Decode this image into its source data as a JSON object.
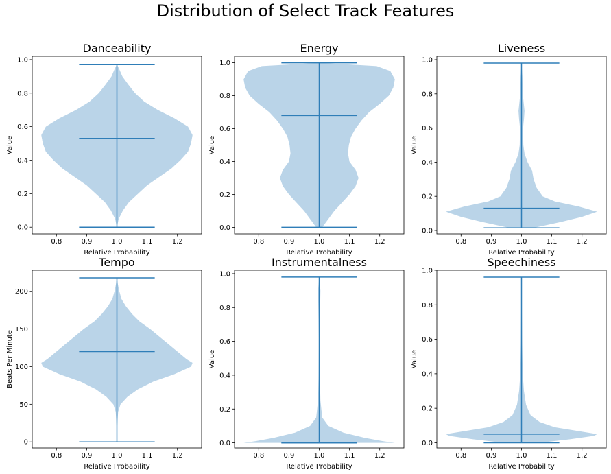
{
  "figure": {
    "title": "Distribution of Select Track Features"
  },
  "colors": {
    "body": "#BAD4E8",
    "line": "#2F7EB8"
  },
  "chart_data": [
    {
      "type": "violin",
      "title": "Danceability",
      "xlabel": "Relative Probability",
      "ylabel": "Value",
      "xlim": [
        0.72,
        1.28
      ],
      "ylim": [
        -0.04,
        1.02
      ],
      "xticks": [
        "0.8",
        "0.9",
        "1.0",
        "1.1",
        "1.2"
      ],
      "yticks": [
        "0.0",
        "0.2",
        "0.4",
        "0.6",
        "0.8",
        "1.0"
      ],
      "ytick_values": [
        0.0,
        0.2,
        0.4,
        0.6,
        0.8,
        1.0
      ],
      "min": 0.0,
      "median": 0.53,
      "max": 0.97,
      "density": [
        [
          0.0,
          0.0
        ],
        [
          0.05,
          0.006
        ],
        [
          0.1,
          0.02
        ],
        [
          0.15,
          0.04
        ],
        [
          0.2,
          0.07
        ],
        [
          0.25,
          0.1
        ],
        [
          0.3,
          0.14
        ],
        [
          0.35,
          0.18
        ],
        [
          0.4,
          0.21
        ],
        [
          0.45,
          0.235
        ],
        [
          0.5,
          0.245
        ],
        [
          0.55,
          0.25
        ],
        [
          0.6,
          0.235
        ],
        [
          0.65,
          0.19
        ],
        [
          0.7,
          0.135
        ],
        [
          0.75,
          0.09
        ],
        [
          0.8,
          0.06
        ],
        [
          0.85,
          0.038
        ],
        [
          0.9,
          0.018
        ],
        [
          0.95,
          0.006
        ],
        [
          0.97,
          0.0
        ]
      ]
    },
    {
      "type": "violin",
      "title": "Energy",
      "xlabel": "Relative Probability",
      "ylabel": "Value",
      "xlim": [
        0.72,
        1.28
      ],
      "ylim": [
        -0.04,
        1.04
      ],
      "xticks": [
        "0.8",
        "0.9",
        "1.0",
        "1.1",
        "1.2"
      ],
      "yticks": [
        "0.0",
        "0.2",
        "0.4",
        "0.6",
        "0.8",
        "1.0"
      ],
      "ytick_values": [
        0.0,
        0.2,
        0.4,
        0.6,
        0.8,
        1.0
      ],
      "min": 0.0,
      "median": 0.68,
      "max": 1.0,
      "density": [
        [
          0.0,
          0.01
        ],
        [
          0.05,
          0.03
        ],
        [
          0.1,
          0.05
        ],
        [
          0.15,
          0.075
        ],
        [
          0.2,
          0.1
        ],
        [
          0.25,
          0.12
        ],
        [
          0.3,
          0.13
        ],
        [
          0.35,
          0.12
        ],
        [
          0.4,
          0.1
        ],
        [
          0.45,
          0.095
        ],
        [
          0.5,
          0.098
        ],
        [
          0.55,
          0.105
        ],
        [
          0.6,
          0.12
        ],
        [
          0.65,
          0.14
        ],
        [
          0.7,
          0.165
        ],
        [
          0.75,
          0.2
        ],
        [
          0.8,
          0.23
        ],
        [
          0.85,
          0.245
        ],
        [
          0.9,
          0.25
        ],
        [
          0.95,
          0.235
        ],
        [
          0.98,
          0.19
        ],
        [
          1.0,
          0.0
        ]
      ]
    },
    {
      "type": "violin",
      "title": "Liveness",
      "xlabel": "Relative Probability",
      "ylabel": "Value",
      "xlim": [
        0.72,
        1.28
      ],
      "ylim": [
        -0.02,
        1.02
      ],
      "xticks": [
        "0.8",
        "0.9",
        "1.0",
        "1.1",
        "1.2"
      ],
      "yticks": [
        "0.0",
        "0.2",
        "0.4",
        "0.6",
        "0.8",
        "1.0"
      ],
      "ytick_values": [
        0.0,
        0.2,
        0.4,
        0.6,
        0.8,
        1.0
      ],
      "min": 0.015,
      "median": 0.13,
      "max": 0.98,
      "density": [
        [
          0.015,
          0.04
        ],
        [
          0.05,
          0.13
        ],
        [
          0.08,
          0.2
        ],
        [
          0.11,
          0.25
        ],
        [
          0.14,
          0.19
        ],
        [
          0.17,
          0.11
        ],
        [
          0.2,
          0.07
        ],
        [
          0.25,
          0.05
        ],
        [
          0.3,
          0.04
        ],
        [
          0.35,
          0.035
        ],
        [
          0.4,
          0.02
        ],
        [
          0.45,
          0.01
        ],
        [
          0.5,
          0.006
        ],
        [
          0.6,
          0.005
        ],
        [
          0.65,
          0.008
        ],
        [
          0.7,
          0.01
        ],
        [
          0.75,
          0.007
        ],
        [
          0.8,
          0.004
        ],
        [
          0.9,
          0.003
        ],
        [
          0.98,
          0.0
        ]
      ]
    },
    {
      "type": "violin",
      "title": "Tempo",
      "xlabel": "Relative Probability",
      "ylabel": "Beats Per Minute",
      "xlim": [
        0.72,
        1.28
      ],
      "ylim": [
        -8,
        228
      ],
      "xticks": [
        "0.8",
        "0.9",
        "1.0",
        "1.1",
        "1.2"
      ],
      "yticks": [
        "0",
        "50",
        "100",
        "150",
        "200"
      ],
      "ytick_values": [
        0,
        50,
        100,
        150,
        200
      ],
      "min": 0,
      "median": 120,
      "max": 218,
      "density": [
        [
          0,
          0.0
        ],
        [
          20,
          0.001
        ],
        [
          40,
          0.004
        ],
        [
          50,
          0.012
        ],
        [
          60,
          0.035
        ],
        [
          70,
          0.07
        ],
        [
          80,
          0.12
        ],
        [
          90,
          0.19
        ],
        [
          100,
          0.245
        ],
        [
          105,
          0.25
        ],
        [
          110,
          0.23
        ],
        [
          120,
          0.2
        ],
        [
          130,
          0.17
        ],
        [
          140,
          0.14
        ],
        [
          150,
          0.11
        ],
        [
          160,
          0.075
        ],
        [
          170,
          0.05
        ],
        [
          180,
          0.03
        ],
        [
          190,
          0.015
        ],
        [
          200,
          0.008
        ],
        [
          210,
          0.003
        ],
        [
          218,
          0.0
        ]
      ]
    },
    {
      "type": "violin",
      "title": "Instrumentalness",
      "xlabel": "Relative Probability",
      "ylabel": "Value",
      "xlim": [
        0.72,
        1.28
      ],
      "ylim": [
        -0.03,
        1.02
      ],
      "xticks": [
        "0.8",
        "0.9",
        "1.0",
        "1.1",
        "1.2"
      ],
      "yticks": [
        "0.0",
        "0.2",
        "0.4",
        "0.6",
        "0.8",
        "1.0"
      ],
      "ytick_values": [
        0.0,
        0.2,
        0.4,
        0.6,
        0.8,
        1.0
      ],
      "min": 0.0,
      "median": 0.0,
      "max": 0.98,
      "density": [
        [
          0.0,
          0.25
        ],
        [
          0.01,
          0.21
        ],
        [
          0.03,
          0.15
        ],
        [
          0.06,
          0.08
        ],
        [
          0.1,
          0.03
        ],
        [
          0.15,
          0.01
        ],
        [
          0.25,
          0.004
        ],
        [
          0.4,
          0.002
        ],
        [
          0.6,
          0.001
        ],
        [
          0.8,
          0.003
        ],
        [
          0.9,
          0.004
        ],
        [
          0.98,
          0.0
        ]
      ]
    },
    {
      "type": "violin",
      "title": "Speechiness",
      "xlabel": "Relative Probability",
      "ylabel": "Value",
      "xlim": [
        0.72,
        1.28
      ],
      "ylim": [
        -0.03,
        1.0
      ],
      "xticks": [
        "0.8",
        "0.9",
        "1.0",
        "1.1",
        "1.2"
      ],
      "yticks": [
        "0.0",
        "0.2",
        "0.4",
        "0.6",
        "0.8",
        "1.0"
      ],
      "ytick_values": [
        0.0,
        0.2,
        0.4,
        0.6,
        0.8,
        1.0
      ],
      "min": 0.0,
      "median": 0.05,
      "max": 0.96,
      "density": [
        [
          0.0,
          0.06
        ],
        [
          0.02,
          0.16
        ],
        [
          0.04,
          0.24
        ],
        [
          0.05,
          0.25
        ],
        [
          0.07,
          0.18
        ],
        [
          0.09,
          0.11
        ],
        [
          0.12,
          0.06
        ],
        [
          0.16,
          0.03
        ],
        [
          0.22,
          0.015
        ],
        [
          0.3,
          0.008
        ],
        [
          0.4,
          0.004
        ],
        [
          0.6,
          0.002
        ],
        [
          0.8,
          0.001
        ],
        [
          0.96,
          0.0
        ]
      ]
    }
  ]
}
